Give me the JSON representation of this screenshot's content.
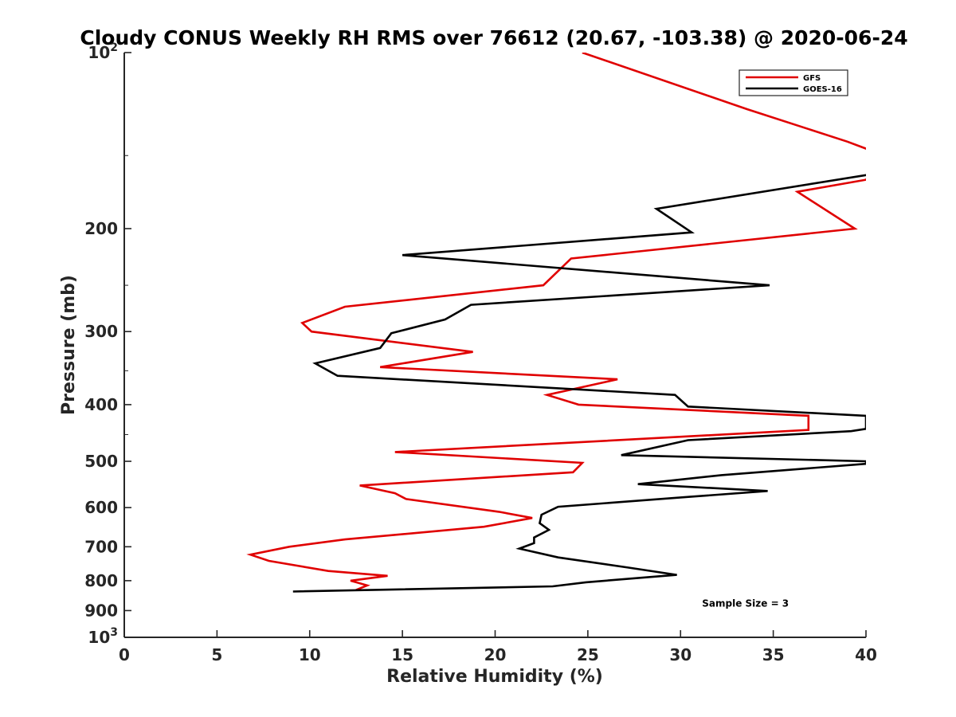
{
  "chart_data": {
    "type": "line",
    "title": "Cloudy CONUS Weekly RH RMS over 76612 (20.67, -103.38) @ 2020-06-24",
    "xlabel": "Relative Humidity (%)",
    "ylabel": "Pressure (mb)",
    "xlim": [
      0,
      40
    ],
    "ylim": [
      100,
      1000
    ],
    "yscale": "log",
    "y_reversed": true,
    "grid": false,
    "legend_position": "top-right",
    "x_ticks": [
      {
        "value": 0,
        "label": "0"
      },
      {
        "value": 5,
        "label": "5"
      },
      {
        "value": 10,
        "label": "10"
      },
      {
        "value": 15,
        "label": "15"
      },
      {
        "value": 20,
        "label": "20"
      },
      {
        "value": 25,
        "label": "25"
      },
      {
        "value": 30,
        "label": "30"
      },
      {
        "value": 35,
        "label": "35"
      },
      {
        "value": 40,
        "label": "40"
      }
    ],
    "y_ticks": [
      {
        "value": 100,
        "base": "10",
        "exp": "2"
      },
      {
        "value": 200,
        "label": "200"
      },
      {
        "value": 300,
        "label": "300"
      },
      {
        "value": 400,
        "label": "400"
      },
      {
        "value": 500,
        "label": "500"
      },
      {
        "value": 600,
        "label": "600"
      },
      {
        "value": 700,
        "label": "700"
      },
      {
        "value": 800,
        "label": "800"
      },
      {
        "value": 900,
        "label": "900"
      },
      {
        "value": 1000,
        "base": "10",
        "exp": "3"
      }
    ],
    "series": [
      {
        "name": "GFS",
        "color": "#e00000",
        "x": [
          24.7,
          33.6,
          39.0,
          41.0,
          40.0,
          36.3,
          39.4,
          24.1,
          22.6,
          11.9,
          9.6,
          10.1,
          18.8,
          13.8,
          26.6,
          22.8,
          24.5,
          36.9,
          36.9,
          14.6,
          24.7,
          24.2,
          12.7,
          14.6,
          15.2,
          20.2,
          22.0,
          19.4,
          11.9,
          8.9,
          6.8,
          7.8,
          11.0,
          14.2,
          12.2,
          13.1,
          12.5
        ],
        "y": [
          100,
          125,
          142,
          150,
          165,
          173,
          200,
          225,
          250,
          272,
          290,
          300,
          325,
          345,
          362,
          385,
          400,
          418,
          442,
          482,
          503,
          522,
          550,
          567,
          580,
          610,
          625,
          647,
          680,
          700,
          722,
          740,
          770,
          785,
          800,
          815,
          830
        ]
      },
      {
        "name": "GOES-16",
        "color": "#000000",
        "x": [
          41.0,
          40.0,
          28.7,
          30.6,
          15.0,
          34.8,
          18.7,
          17.3,
          14.4,
          13.8,
          10.3,
          11.5,
          29.7,
          30.4,
          40.0,
          40.0,
          39.2,
          30.4,
          26.8,
          40.0,
          40.0,
          32.2,
          27.7,
          34.7,
          30.5,
          23.4,
          22.5,
          22.4,
          22.9,
          22.1,
          22.1,
          21.3,
          23.4,
          27.2,
          29.8,
          24.9,
          23.1,
          9.1
        ],
        "y": [
          160,
          162,
          185,
          203,
          222,
          250,
          270,
          286,
          302,
          320,
          340,
          357,
          385,
          403,
          418,
          440,
          444,
          460,
          488,
          500,
          505,
          528,
          547,
          562,
          575,
          598,
          617,
          638,
          655,
          675,
          690,
          705,
          730,
          760,
          782,
          805,
          818,
          835
        ]
      }
    ],
    "annotations": [
      {
        "text": "Sample Size = 3",
        "x": 33.5,
        "y": 900
      }
    ]
  }
}
